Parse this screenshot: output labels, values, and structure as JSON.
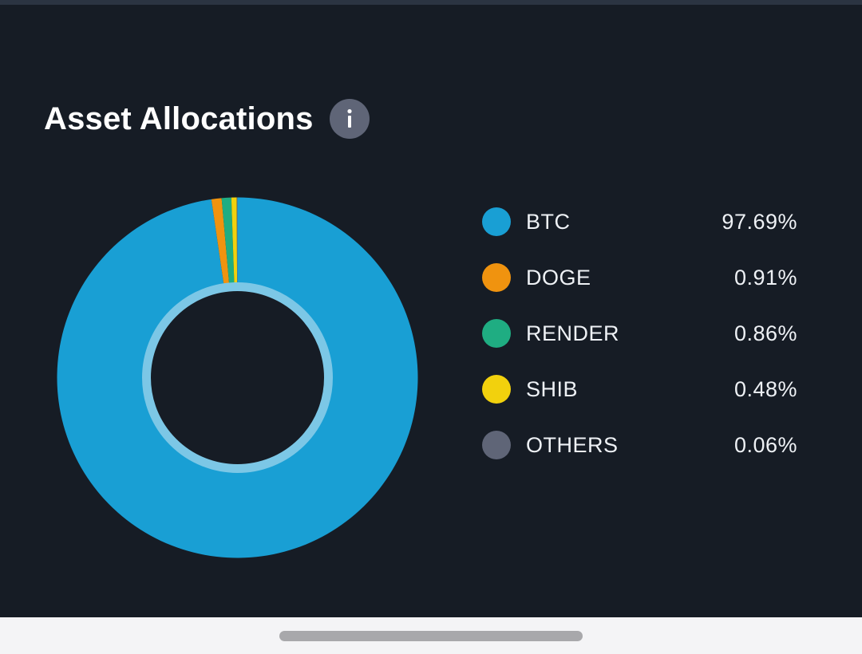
{
  "card": {
    "title": "Asset Allocations",
    "info_icon": "info-icon"
  },
  "colors": {
    "background": "#161c25",
    "btc": "#199fd4",
    "doge": "#f0930f",
    "render": "#1fad82",
    "shib": "#f2d10d",
    "others": "#5f6577",
    "inner_ring": "#7cc7e6"
  },
  "chart_data": {
    "type": "pie",
    "categories": [
      "BTC",
      "DOGE",
      "RENDER",
      "SHIB",
      "OTHERS"
    ],
    "values": [
      97.69,
      0.91,
      0.86,
      0.48,
      0.06
    ],
    "labels": [
      "97.69%",
      "0.91%",
      "0.86%",
      "0.48%",
      "0.06%"
    ],
    "colors": [
      "#199fd4",
      "#f0930f",
      "#1fad82",
      "#f2d10d",
      "#5f6577"
    ],
    "title": "",
    "donut": true,
    "legend": "right"
  }
}
